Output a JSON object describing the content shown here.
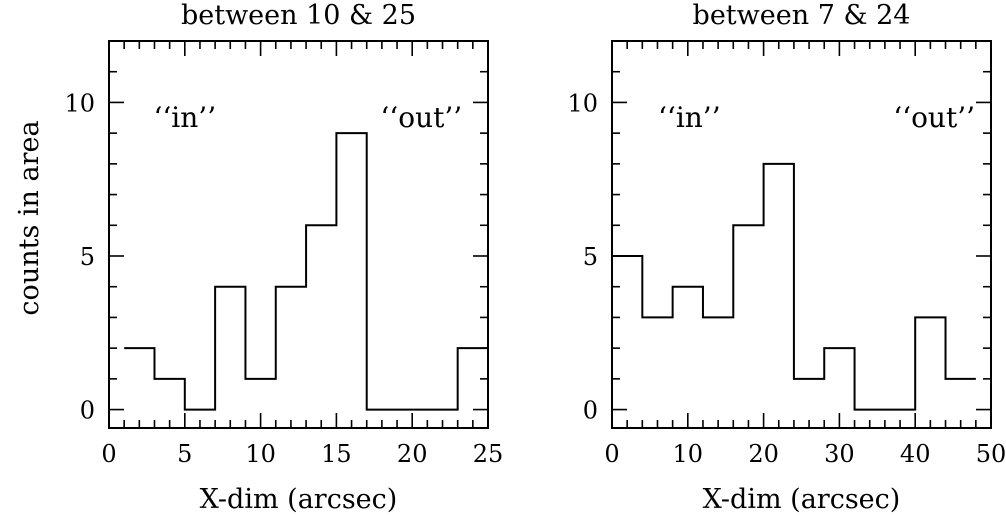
{
  "ylabel": "counts in area",
  "chart_data": [
    {
      "type": "histogram",
      "title": "between 10 & 25",
      "xlabel": "X-dim (arcsec)",
      "xlim": [
        0,
        25
      ],
      "ylim": [
        -0.6,
        12
      ],
      "xticks": [
        0,
        5,
        10,
        15,
        20,
        25
      ],
      "yticks": [
        0,
        5,
        10
      ],
      "xtick_labels": [
        "0",
        "5",
        "10",
        "15",
        "20",
        "25"
      ],
      "ytick_labels": [
        "0",
        "5",
        "10"
      ],
      "bin_edges": [
        1,
        3,
        5,
        7,
        9,
        11,
        13,
        15,
        17,
        19,
        21,
        23,
        25
      ],
      "counts": [
        2,
        1,
        0,
        4,
        1,
        4,
        6,
        9,
        0,
        0,
        0,
        2
      ],
      "annotations": [
        {
          "text": "‘‘in’’",
          "x": 5.0,
          "y": 9.2
        },
        {
          "text": "‘‘out’’",
          "x": 20.6,
          "y": 9.2
        }
      ]
    },
    {
      "type": "histogram",
      "title": "between 7 & 24",
      "xlabel": "X-dim (arcsec)",
      "xlim": [
        0,
        50
      ],
      "ylim": [
        -0.6,
        12
      ],
      "xticks": [
        0,
        10,
        20,
        30,
        40,
        50
      ],
      "yticks": [
        0,
        5,
        10
      ],
      "xtick_labels": [
        "0",
        "10",
        "20",
        "30",
        "40",
        "50"
      ],
      "ytick_labels": [
        "0",
        "5",
        "10"
      ],
      "bin_edges": [
        0,
        4,
        8,
        12,
        16,
        20,
        24,
        28,
        32,
        36,
        40,
        44,
        48
      ],
      "counts": [
        5,
        3,
        4,
        3,
        6,
        8,
        1,
        2,
        0,
        0,
        3,
        1
      ],
      "annotations": [
        {
          "text": "‘‘in’’",
          "x": 10.2,
          "y": 9.2
        },
        {
          "text": "‘‘out’’",
          "x": 42.5,
          "y": 9.2
        }
      ]
    }
  ]
}
